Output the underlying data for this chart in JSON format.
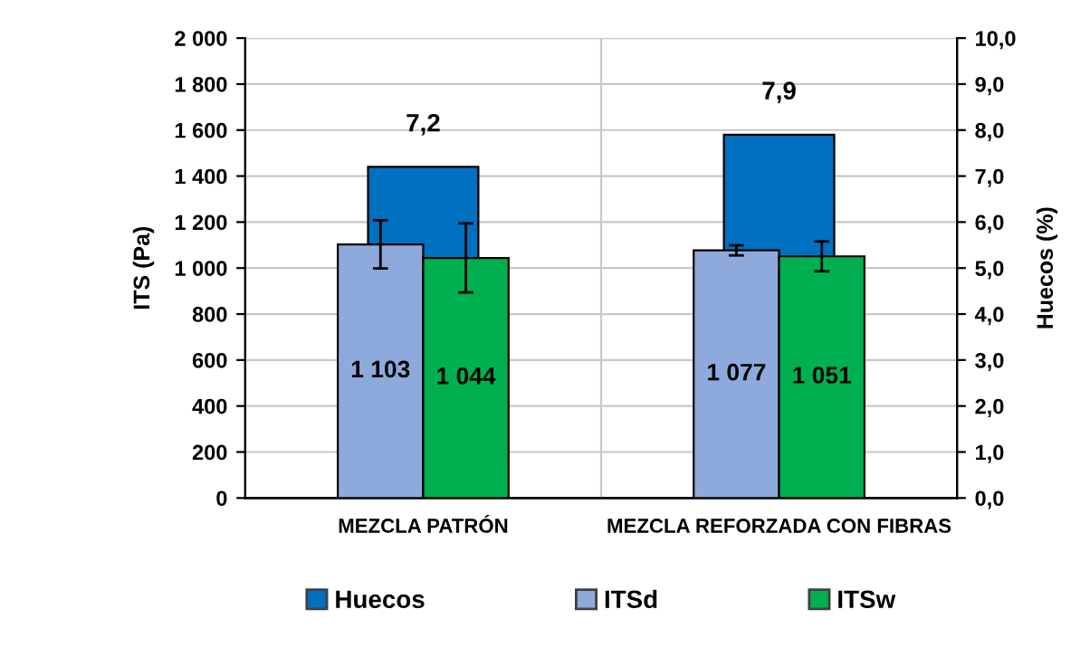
{
  "chart_data": {
    "type": "bar",
    "ylabel": "ITS (Pa)",
    "y2label": "Huecos (%)",
    "categories": [
      "MEZCLA PATRÓN",
      "MEZCLA REFORZADA CON FIBRAS"
    ],
    "series": [
      {
        "name": "Huecos",
        "color": "#0070c0",
        "axis": "y2",
        "values": [
          7.2,
          7.9
        ],
        "value_labels": [
          "7,2",
          "7,9"
        ]
      },
      {
        "name": "ITSd",
        "color": "#8eaadc",
        "values": [
          1103,
          1077
        ],
        "value_labels": [
          "1 103",
          "1 077"
        ],
        "errors": [
          105,
          22
        ]
      },
      {
        "name": "ITSw",
        "color": "#00b050",
        "values": [
          1044,
          1051
        ],
        "value_labels": [
          "1 044",
          "1 051"
        ],
        "errors": [
          150,
          65
        ]
      }
    ],
    "ylim": [
      0,
      2000
    ],
    "yticks": [
      {
        "value": 0,
        "label": "0"
      },
      {
        "value": 200,
        "label": "200"
      },
      {
        "value": 400,
        "label": "400"
      },
      {
        "value": 600,
        "label": "600"
      },
      {
        "value": 800,
        "label": "800"
      },
      {
        "value": 1000,
        "label": "1 000"
      },
      {
        "value": 1200,
        "label": "1 200"
      },
      {
        "value": 1400,
        "label": "1 400"
      },
      {
        "value": 1600,
        "label": "1 600"
      },
      {
        "value": 1800,
        "label": "1 800"
      },
      {
        "value": 2000,
        "label": "2 000"
      }
    ],
    "y2lim": [
      0,
      10
    ],
    "y2ticks": [
      {
        "value": 0,
        "label": "0,0"
      },
      {
        "value": 1,
        "label": "1,0"
      },
      {
        "value": 2,
        "label": "2,0"
      },
      {
        "value": 3,
        "label": "3,0"
      },
      {
        "value": 4,
        "label": "4,0"
      },
      {
        "value": 5,
        "label": "5,0"
      },
      {
        "value": 6,
        "label": "6,0"
      },
      {
        "value": 7,
        "label": "7,0"
      },
      {
        "value": 8,
        "label": "8,0"
      },
      {
        "value": 9,
        "label": "9,0"
      },
      {
        "value": 10,
        "label": "10,0"
      }
    ],
    "grid": true,
    "legend": "bottom"
  }
}
